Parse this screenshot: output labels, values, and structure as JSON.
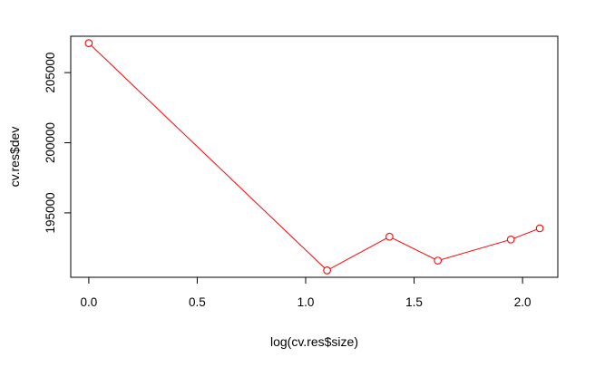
{
  "chart_data": {
    "type": "line",
    "title": "",
    "xlabel": "log(cv.res$size)",
    "ylabel": "cv.res$dev",
    "x": [
      0.0,
      1.0986,
      1.3863,
      1.6094,
      1.9459,
      2.0794
    ],
    "y": [
      207100,
      190900,
      193300,
      191600,
      193100,
      193900
    ],
    "xlim": [
      -0.0832,
      2.1626
    ],
    "ylim": [
      190408,
      207592
    ],
    "xticks": [
      0.0,
      0.5,
      1.0,
      1.5,
      2.0
    ],
    "xtick_labels": [
      "0.0",
      "0.5",
      "1.0",
      "1.5",
      "2.0"
    ],
    "yticks": [
      195000,
      200000,
      205000
    ],
    "ytick_labels": [
      "195000",
      "200000",
      "205000"
    ],
    "series_color": "#ff0000",
    "marker": "open-circle",
    "grid": false,
    "legend": "none"
  }
}
